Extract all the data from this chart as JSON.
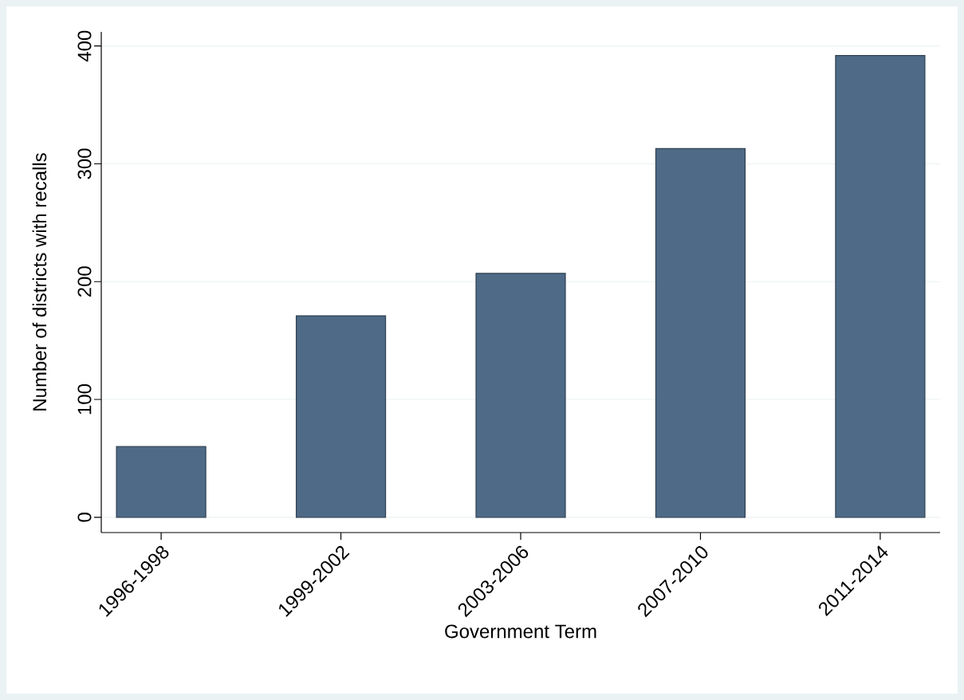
{
  "chart_data": {
    "type": "bar",
    "xlabel": "Government Term",
    "ylabel": "Number of districts with recalls",
    "categories": [
      "1996-1998",
      "1999-2002",
      "2003-2006",
      "2007-2010",
      "2011-2014"
    ],
    "values": [
      60,
      171,
      207,
      313,
      392
    ],
    "color": "#4e6a87",
    "ylim": [
      -13,
      412
    ],
    "yticks": [
      0,
      100,
      200,
      300,
      400
    ],
    "grid": "y"
  }
}
